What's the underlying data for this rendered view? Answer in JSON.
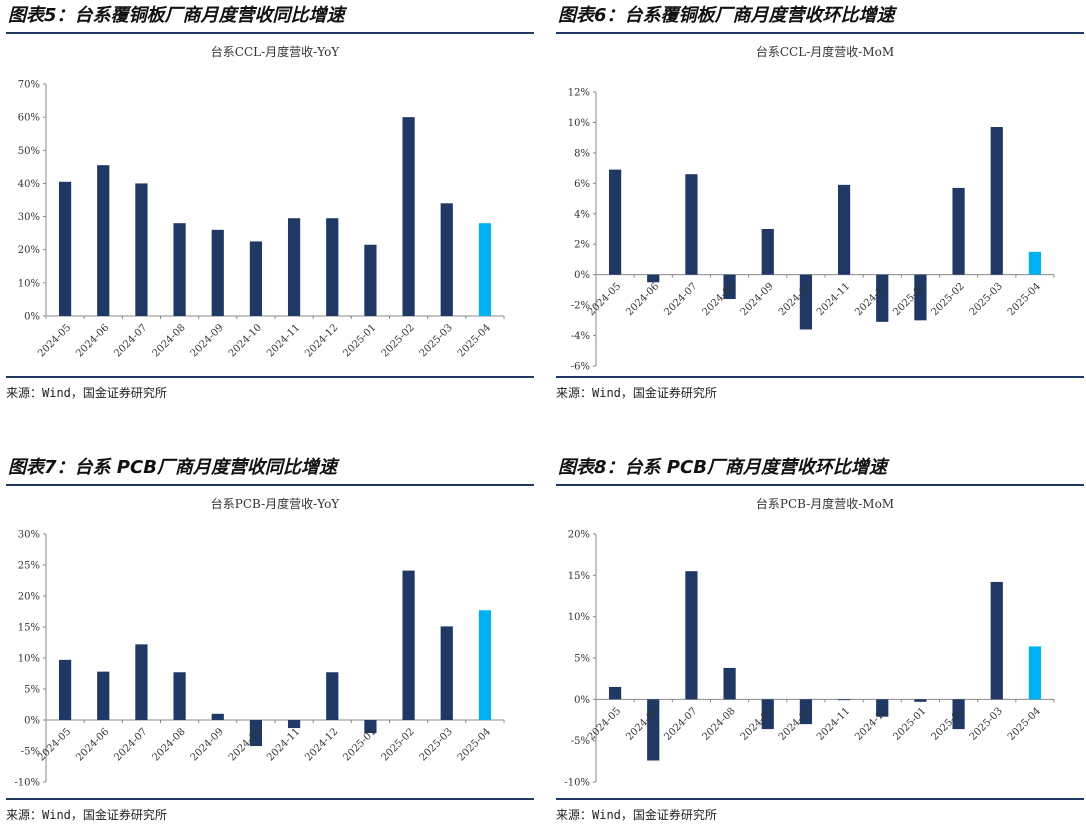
{
  "panels": [
    {
      "fig_title": "图表5：台系覆铜板厂商月度营收同比增速",
      "source": "来源：Wind，国金证券研究所",
      "chart_data": {
        "type": "bar",
        "title": "台系CCL-月度营收-YoY",
        "categories": [
          "2024-05",
          "2024-06",
          "2024-07",
          "2024-08",
          "2024-09",
          "2024-10",
          "2024-11",
          "2024-12",
          "2025-01",
          "2025-02",
          "2025-03",
          "2025-04"
        ],
        "values": [
          40.5,
          45.5,
          40,
          28,
          26,
          22.5,
          29.5,
          29.5,
          21.5,
          60,
          34,
          28
        ],
        "ylim": [
          0,
          70
        ],
        "yticks": [
          "0%",
          "10%",
          "20%",
          "30%",
          "40%",
          "50%",
          "60%",
          "70%"
        ],
        "highlight_last": true,
        "grid": false,
        "colors": {
          "bar": "#1f3864",
          "highlight": "#00b0f0"
        }
      }
    },
    {
      "fig_title": "图表6：台系覆铜板厂商月度营收环比增速",
      "source": "来源：Wind，国金证券研究所",
      "chart_data": {
        "type": "bar",
        "title": "台系CCL-月度营收-MoM",
        "categories": [
          "2024-05",
          "2024-06",
          "2024-07",
          "2024-08",
          "2024-09",
          "2024-10",
          "2024-11",
          "2024-12",
          "2025-01",
          "2025-02",
          "2025-03",
          "2025-04"
        ],
        "values": [
          6.9,
          -0.5,
          6.6,
          -1.6,
          3.0,
          -3.6,
          5.9,
          -3.1,
          -3.0,
          5.7,
          9.7,
          1.5
        ],
        "ylim": [
          -6,
          12
        ],
        "yticks": [
          "-6%",
          "-4%",
          "-2%",
          "0%",
          "2%",
          "4%",
          "6%",
          "8%",
          "10%",
          "12%"
        ],
        "highlight_last": true,
        "grid": false,
        "colors": {
          "bar": "#1f3864",
          "highlight": "#00b0f0"
        }
      }
    },
    {
      "fig_title": "图表7：台系 PCB厂商月度营收同比增速",
      "source": "来源：Wind，国金证券研究所",
      "chart_data": {
        "type": "bar",
        "title": "台系PCB-月度营收-YoY",
        "categories": [
          "2024-05",
          "2024-06",
          "2024-07",
          "2024-08",
          "2024-09",
          "2024-10",
          "2024-11",
          "2024-12",
          "2025-01",
          "2025-02",
          "2025-03",
          "2025-04"
        ],
        "values": [
          9.7,
          7.8,
          12.2,
          7.7,
          1.0,
          -4.2,
          -1.3,
          7.7,
          -2.1,
          24.1,
          15.1,
          17.7
        ],
        "ylim": [
          -10,
          30
        ],
        "yticks": [
          "-10%",
          "-5%",
          "0%",
          "5%",
          "10%",
          "15%",
          "20%",
          "25%",
          "30%"
        ],
        "highlight_last": true,
        "grid": false,
        "colors": {
          "bar": "#1f3864",
          "highlight": "#00b0f0"
        }
      }
    },
    {
      "fig_title": "图表8：台系 PCB厂商月度营收环比增速",
      "source": "来源：Wind，国金证券研究所",
      "chart_data": {
        "type": "bar",
        "title": "台系PCB-月度营收-MoM",
        "categories": [
          "2024-05",
          "2024-06",
          "2024-07",
          "2024-08",
          "2024-09",
          "2024-10",
          "2024-11",
          "2024-12",
          "2025-01",
          "2025-02",
          "2025-03",
          "2025-04"
        ],
        "values": [
          1.5,
          -7.4,
          15.5,
          3.8,
          -3.6,
          -3.0,
          -0.1,
          -2.1,
          -0.3,
          -3.6,
          14.2,
          6.4
        ],
        "ylim": [
          -10,
          20
        ],
        "yticks": [
          "-10%",
          "-5%",
          "0%",
          "5%",
          "10%",
          "15%",
          "20%"
        ],
        "highlight_last": true,
        "grid": false,
        "colors": {
          "bar": "#1f3864",
          "highlight": "#00b0f0"
        }
      }
    }
  ]
}
